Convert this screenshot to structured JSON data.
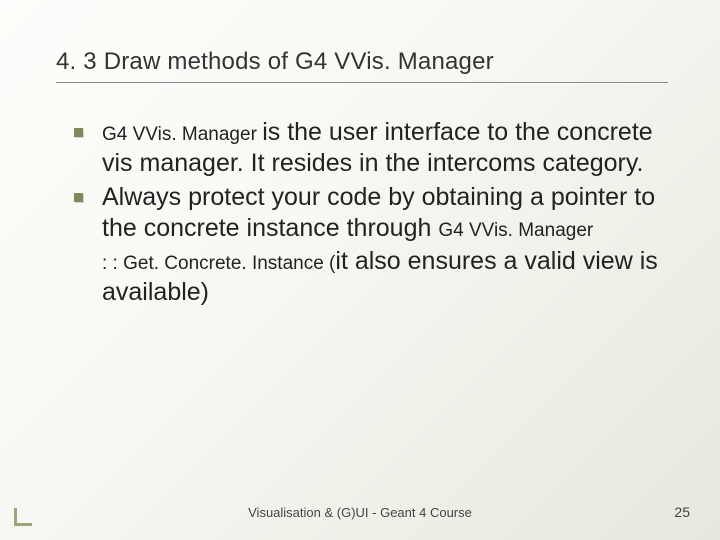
{
  "slide": {
    "title": "4. 3 Draw methods of G4 VVis. Manager",
    "bullets": [
      {
        "lead_small": "G4 VVis. Manager ",
        "text": "is the user interface to the concrete vis manager.  It resides in the intercoms category."
      },
      {
        "text": "Always protect your code by obtaining a pointer to the concrete instance through ",
        "trail_small": "G4 VVis. Manager"
      }
    ],
    "continuation": {
      "lead_small": ": : Get. Concrete. Instance (",
      "text": "it also ensures a valid view is available)"
    },
    "footer": "Visualisation & (G)UI - Geant 4 Course",
    "page": "25"
  },
  "style": {
    "bullet_color": "#7e8a5a",
    "title_fontsize": 24,
    "body_fontsize": 25,
    "small_fontsize": 19,
    "footer_fontsize": 13,
    "background_gradient": [
      "#fdfdfb",
      "#e8e8de"
    ],
    "text_color": "#2a2a2a"
  }
}
